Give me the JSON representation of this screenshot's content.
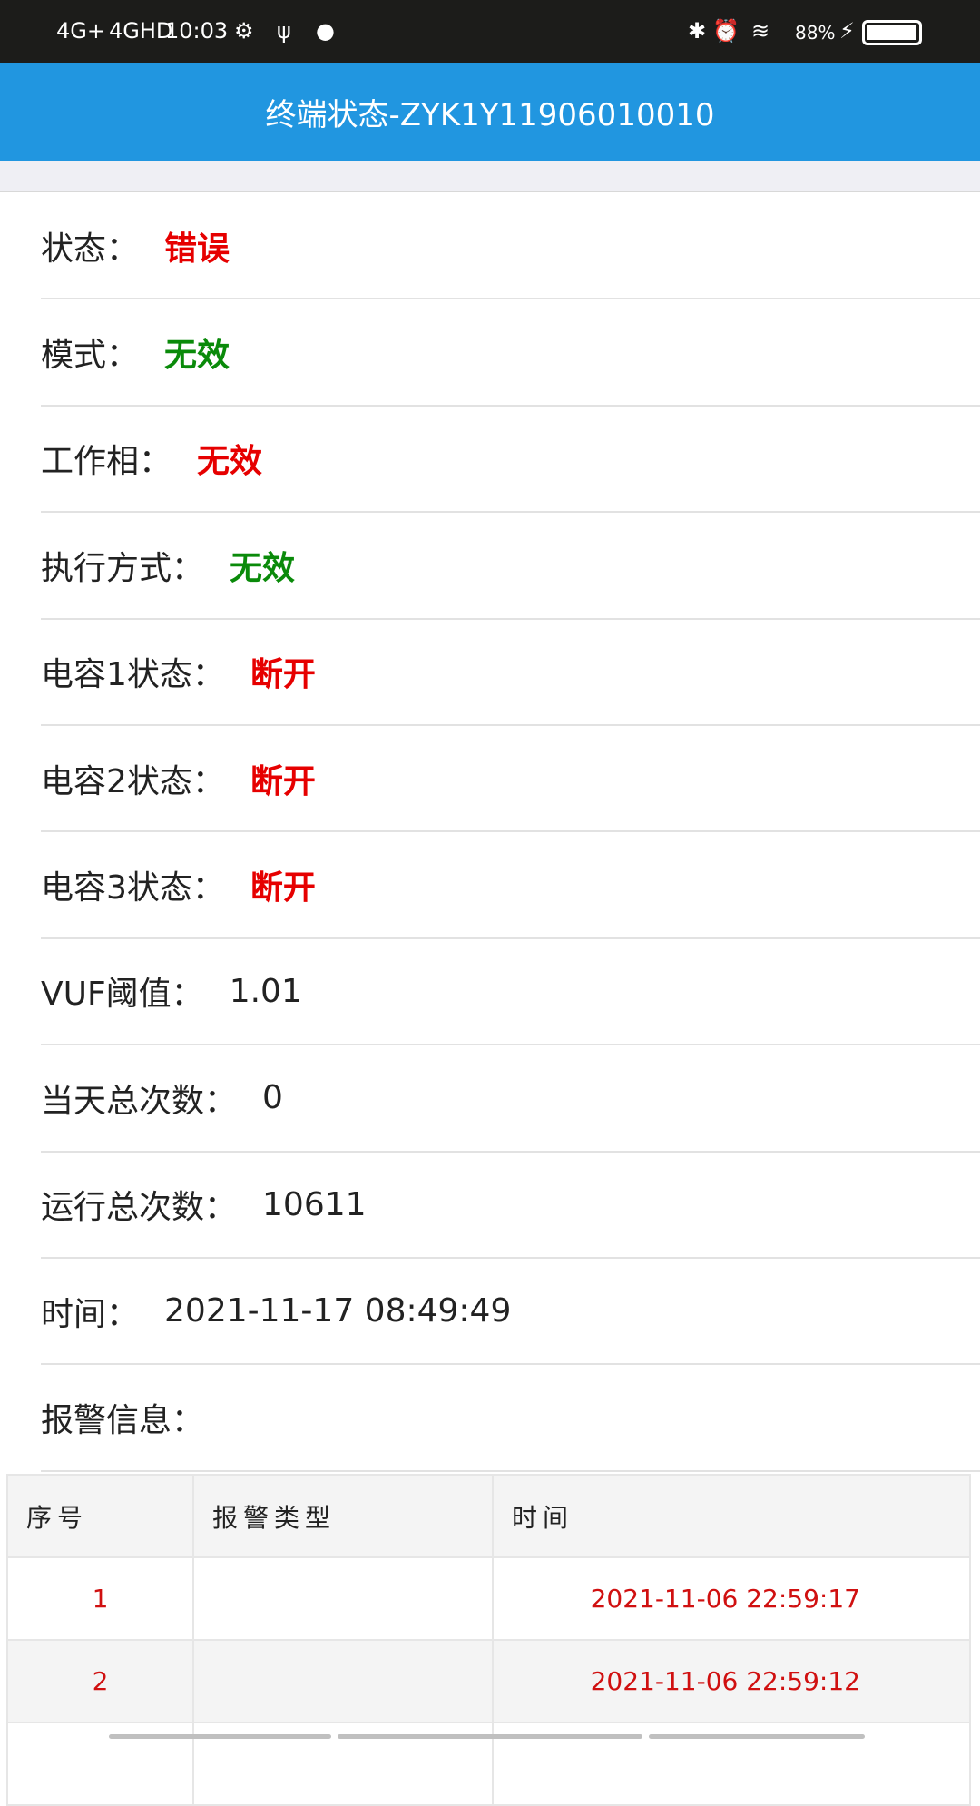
{
  "status_bar": {
    "network1": "4G+",
    "network2": "4GHD",
    "time": "10:03",
    "battery": "88%",
    "icons": [
      "usb-settings-icon",
      "usb-icon",
      "chat-icon",
      "bluetooth-icon",
      "alarm-icon",
      "wifi-icon",
      "charging-icon",
      "battery-icon"
    ]
  },
  "header": {
    "title": "终端状态-ZYK1Y11906010010"
  },
  "fields": [
    {
      "label": "状态：",
      "value": "错误",
      "color": "#e60000"
    },
    {
      "label": "模式：",
      "value": "无效",
      "color": "#0a8a0a"
    },
    {
      "label": "工作相：",
      "value": "无效",
      "color": "#e60000"
    },
    {
      "label": "执行方式：",
      "value": "无效",
      "color": "#0a8a0a"
    },
    {
      "label": "电容1状态：",
      "value": "断开",
      "color": "#e60000"
    },
    {
      "label": "电容2状态：",
      "value": "断开",
      "color": "#e60000"
    },
    {
      "label": "电容3状态：",
      "value": "断开",
      "color": "#e60000"
    },
    {
      "label": "VUF阈值：",
      "value": "1.01"
    },
    {
      "label": "当天总次数：",
      "value": "0"
    },
    {
      "label": "运行总次数：",
      "value": "10611"
    },
    {
      "label": "时间：",
      "value": "2021-11-17 08:49:49"
    },
    {
      "label": "报警信息：",
      "value": ""
    }
  ],
  "alarm_table": {
    "headers": [
      "序号",
      "报警类型",
      "时间"
    ],
    "rows": [
      [
        "1",
        "",
        "2021-11-06 22:59:17"
      ],
      [
        "2",
        "",
        "2021-11-06 22:59:12"
      ]
    ]
  }
}
